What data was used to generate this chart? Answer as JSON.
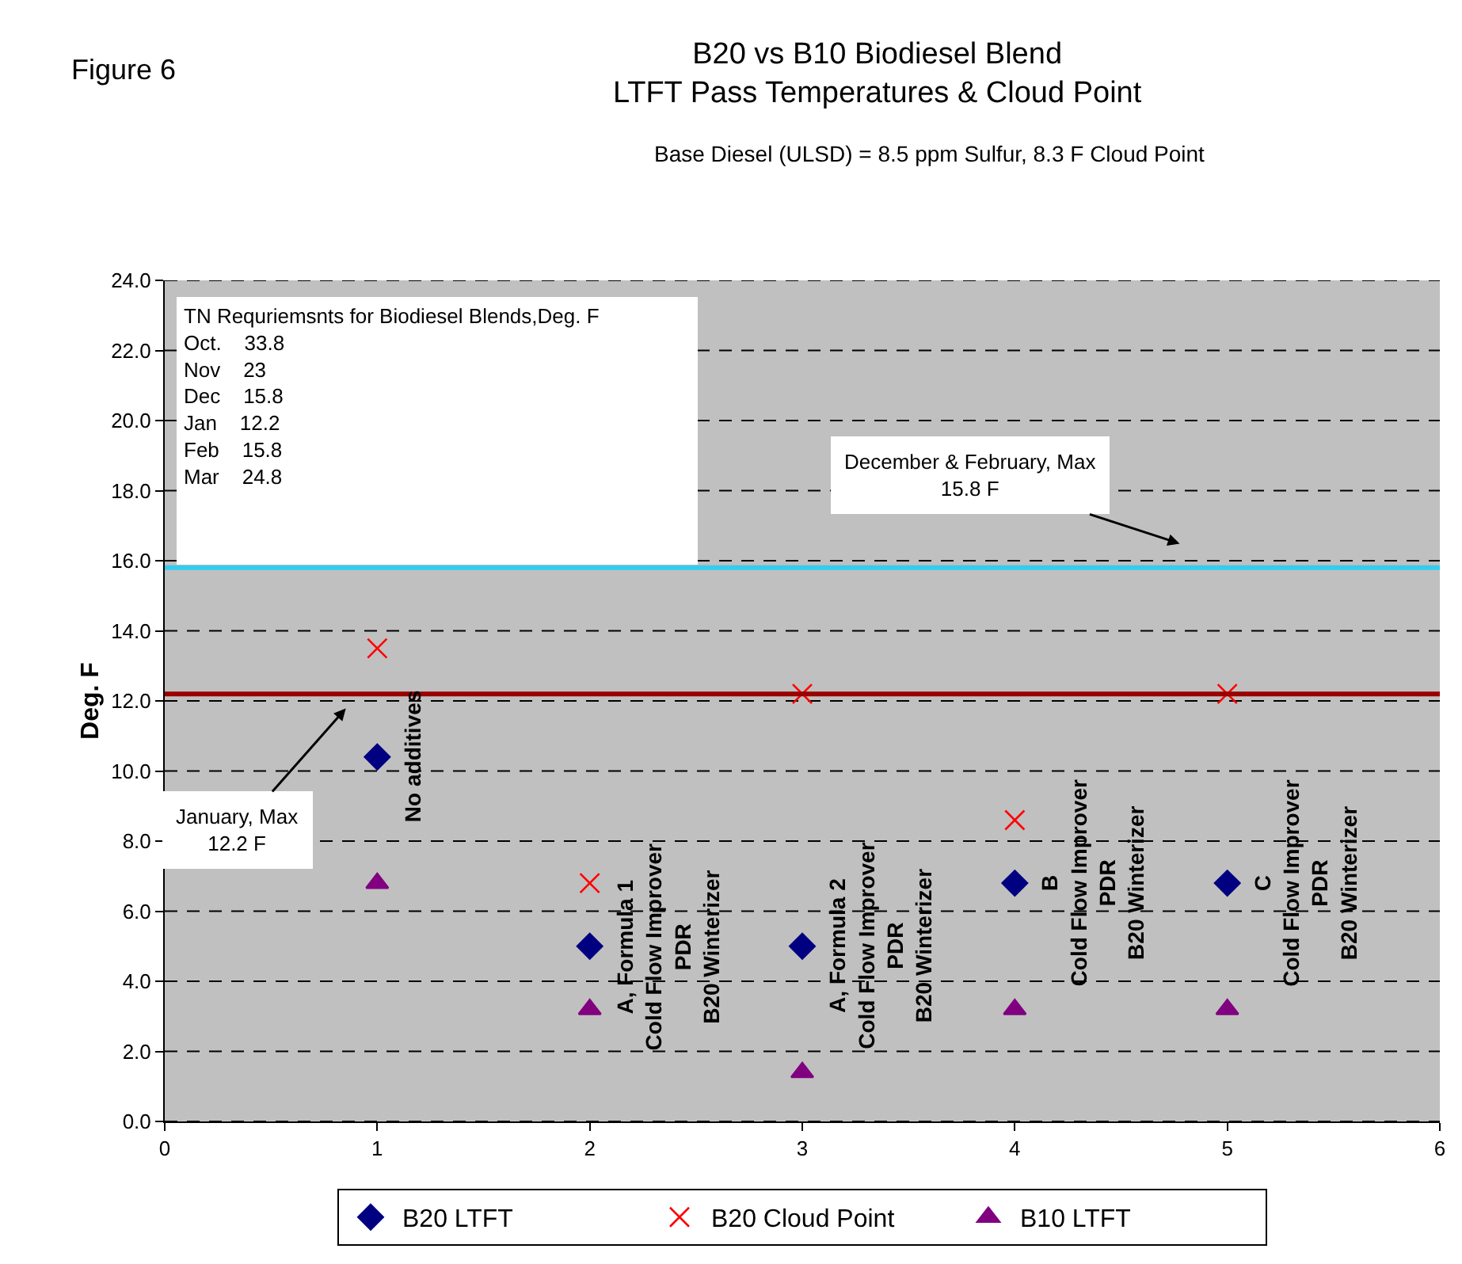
{
  "chart_data": {
    "type": "scatter",
    "title": "B20 vs B10 Biodiesel Blend\nLTFT Pass Temperatures & Cloud Point",
    "subtitle": "Base Diesel (ULSD) = 8.5 ppm Sulfur, 8.3 F Cloud Point",
    "ylabel": "Deg. F",
    "x": [
      1,
      2,
      3,
      4,
      5
    ],
    "series": [
      {
        "name": "B20 LTFT",
        "color": "#000080",
        "marker": "diamond",
        "values": [
          10.4,
          5.0,
          5.0,
          6.8,
          6.8
        ]
      },
      {
        "name": "B20 Cloud Point",
        "color": "#ff0000",
        "marker": "cross",
        "values": [
          13.5,
          6.8,
          12.2,
          8.6,
          12.2
        ]
      },
      {
        "name": "B10 LTFT",
        "color": "#800080",
        "marker": "triangle",
        "values": [
          6.8,
          3.2,
          1.4,
          3.2,
          3.2
        ]
      }
    ],
    "xlim": [
      0,
      6
    ],
    "xticks": [
      0,
      1,
      2,
      3,
      4,
      5,
      6
    ],
    "ylim": [
      0,
      24
    ],
    "yticks": [
      {
        "value": 0,
        "label": "0.0"
      },
      {
        "value": 2,
        "label": "2.0"
      },
      {
        "value": 4,
        "label": "4.0"
      },
      {
        "value": 6,
        "label": "6.0"
      },
      {
        "value": 8,
        "label": "8.0"
      },
      {
        "value": 10,
        "label": "10.0"
      },
      {
        "value": 12,
        "label": "12.0"
      },
      {
        "value": 14,
        "label": "14.0"
      },
      {
        "value": 16,
        "label": "16.0"
      },
      {
        "value": 18,
        "label": "18.0"
      },
      {
        "value": 20,
        "label": "20.0"
      },
      {
        "value": 22,
        "label": "22.0"
      },
      {
        "value": 24,
        "label": "24.0"
      }
    ],
    "grid": "y",
    "legend": "bottom",
    "ref_lines": [
      {
        "axis": "y",
        "value": 15.8,
        "label": null,
        "color": "#33ccee"
      },
      {
        "axis": "y",
        "value": 12.2,
        "label": null,
        "color": "#990000"
      }
    ],
    "annotations": [
      "Figure 6",
      "TN Requriemsnts for Biodiesel Blends,Deg. F\nOct.    33.8\nNov    23\nDec    15.8\nJan    12.2\nFeb    15.8\nMar    24.8",
      "January, Max\n12.2 F",
      "December & February, Max\n15.8 F",
      {
        "text": "No additives",
        "x": 1,
        "y": 10.4
      },
      {
        "text": "A, Formula 1\nCold Flow Improver\nPDR\nB20 Winterizer",
        "x": 2,
        "y": 5.0
      },
      {
        "text": "A, Formula 2\nCold Flow Improver\nPDR\nB20 Winterizer",
        "x": 3,
        "y": 5.0
      },
      {
        "text": "B\nCold Flow Improver\nPDR\nB20 Winterizer",
        "x": 4,
        "y": 6.8
      },
      {
        "text": "C\nCold Flow Improver\nPDR\nB20 Winterizer",
        "x": 5,
        "y": 6.8
      }
    ]
  }
}
